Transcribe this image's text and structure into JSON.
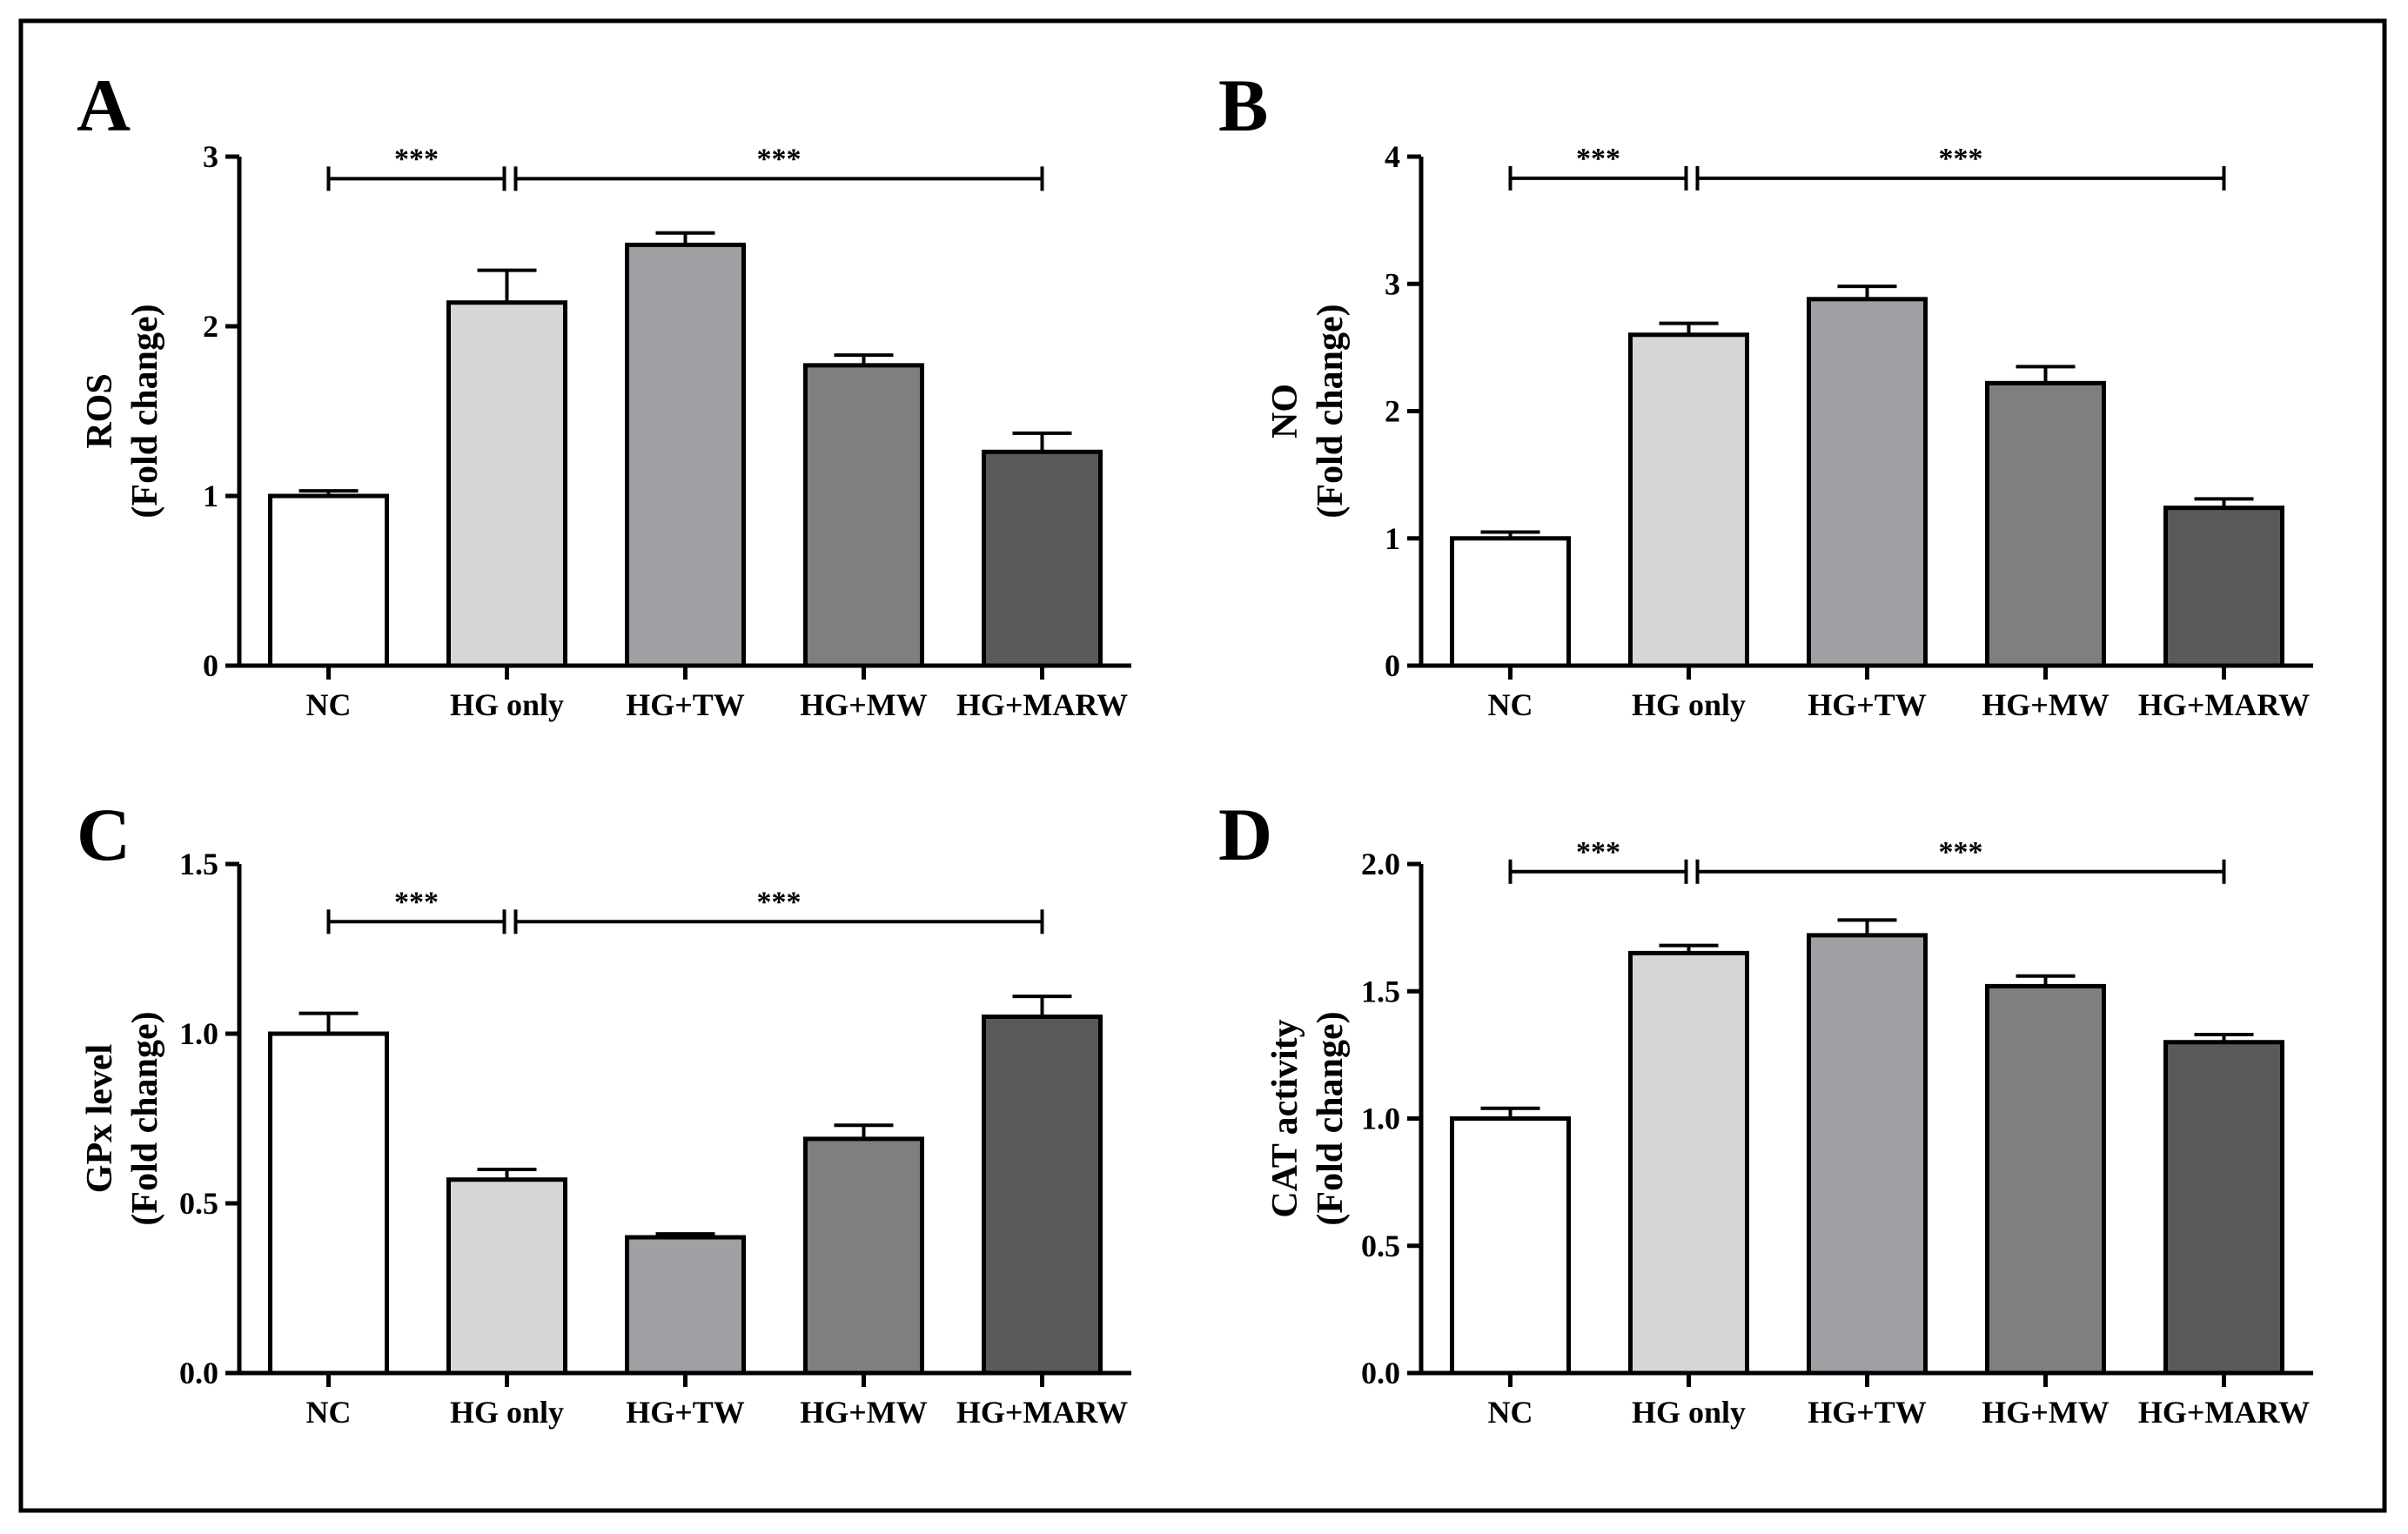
{
  "figure": {
    "bar_colors": [
      "#ffffff",
      "#d6d6d6",
      "#a0a0a4",
      "#7f7f7f",
      "#5a5a5a"
    ],
    "frame_color": "#000000"
  },
  "chart_data": [
    {
      "panel": "A",
      "type": "bar",
      "categories": [
        "NC",
        "HG only",
        "HG+TW",
        "HG+MW",
        "HG+MARW"
      ],
      "values": [
        1.0,
        2.14,
        2.48,
        1.77,
        1.26
      ],
      "errors": [
        0.03,
        0.19,
        0.07,
        0.06,
        0.11
      ],
      "ylabel_lines": [
        "ROS",
        "(Fold change)"
      ],
      "ylim": [
        0,
        3
      ],
      "yticks": [
        "0",
        "1",
        "2",
        "3"
      ],
      "ytick_values": [
        0,
        1,
        2,
        3
      ],
      "significance": [
        {
          "from": 0,
          "to": 1,
          "label": "***",
          "y": 2.87
        },
        {
          "from": 1,
          "to": 4,
          "label": "***",
          "y": 2.87
        }
      ]
    },
    {
      "panel": "B",
      "type": "bar",
      "categories": [
        "NC",
        "HG only",
        "HG+TW",
        "HG+MW",
        "HG+MARW"
      ],
      "values": [
        1.0,
        2.6,
        2.88,
        2.22,
        1.24
      ],
      "errors": [
        0.05,
        0.09,
        0.1,
        0.13,
        0.07
      ],
      "ylabel_lines": [
        "NO",
        "(Fold change)"
      ],
      "ylim": [
        0,
        4
      ],
      "yticks": [
        "0",
        "1",
        "2",
        "3",
        "4"
      ],
      "ytick_values": [
        0,
        1,
        2,
        3,
        4
      ],
      "significance": [
        {
          "from": 0,
          "to": 1,
          "label": "***",
          "y": 3.83
        },
        {
          "from": 1,
          "to": 4,
          "label": "***",
          "y": 3.83
        }
      ]
    },
    {
      "panel": "C",
      "type": "bar",
      "categories": [
        "NC",
        "HG only",
        "HG+TW",
        "HG+MW",
        "HG+MARW"
      ],
      "values": [
        1.0,
        0.57,
        0.4,
        0.69,
        1.05
      ],
      "errors": [
        0.06,
        0.03,
        0.01,
        0.04,
        0.06
      ],
      "ylabel_lines": [
        "GPx level",
        "(Fold change)"
      ],
      "ylim": [
        0,
        1.5
      ],
      "yticks": [
        "0.0",
        "0.5",
        "1.0",
        "1.5"
      ],
      "ytick_values": [
        0,
        0.5,
        1.0,
        1.5
      ],
      "significance": [
        {
          "from": 0,
          "to": 1,
          "label": "***",
          "y": 1.33
        },
        {
          "from": 1,
          "to": 4,
          "label": "***",
          "y": 1.33
        }
      ]
    },
    {
      "panel": "D",
      "type": "bar",
      "categories": [
        "NC",
        "HG only",
        "HG+TW",
        "HG+MW",
        "HG+MARW"
      ],
      "values": [
        1.0,
        1.65,
        1.72,
        1.52,
        1.3
      ],
      "errors": [
        0.04,
        0.03,
        0.06,
        0.04,
        0.03
      ],
      "ylabel_lines": [
        "CAT activity",
        "(Fold change)"
      ],
      "ylim": [
        0,
        2.0
      ],
      "yticks": [
        "0.0",
        "0.5",
        "1.0",
        "1.5",
        "2.0"
      ],
      "ytick_values": [
        0,
        0.5,
        1.0,
        1.5,
        2.0
      ],
      "significance": [
        {
          "from": 0,
          "to": 1,
          "label": "***",
          "y": 1.97
        },
        {
          "from": 1,
          "to": 4,
          "label": "***",
          "y": 1.97
        }
      ]
    }
  ]
}
